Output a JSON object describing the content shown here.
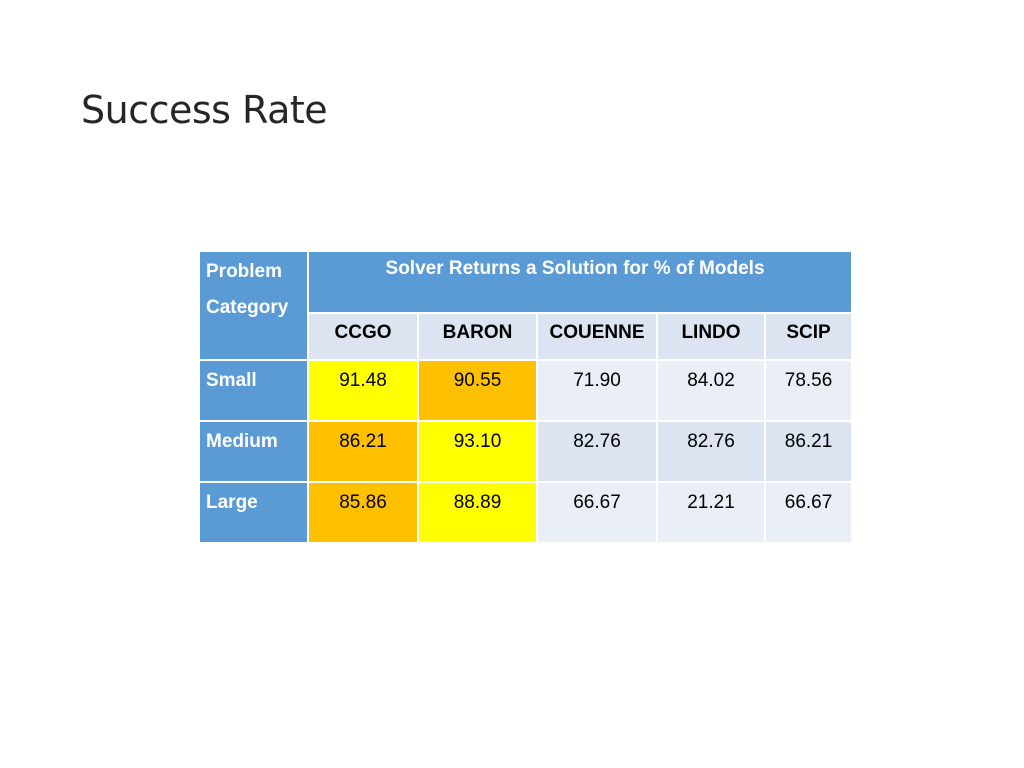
{
  "slide": {
    "title": "Success Rate"
  },
  "table": {
    "category_header_line1": "Problem",
    "category_header_line2": "Category",
    "span_header": "Solver Returns a Solution for % of Models",
    "solvers": [
      "CCGO",
      "BARON",
      "COUENNE",
      "LINDO",
      "SCIP"
    ],
    "rows": [
      {
        "category": "Small",
        "values": [
          "91.48",
          "90.55",
          "71.90",
          "84.02",
          "78.56"
        ],
        "highlights": [
          "yellow",
          "gold",
          "",
          "",
          ""
        ]
      },
      {
        "category": "Medium",
        "values": [
          "86.21",
          "93.10",
          "82.76",
          "82.76",
          "86.21"
        ],
        "highlights": [
          "gold",
          "yellow",
          "",
          "",
          ""
        ]
      },
      {
        "category": "Large",
        "values": [
          "85.86",
          "88.89",
          "66.67",
          "21.21",
          "66.67"
        ],
        "highlights": [
          "gold",
          "yellow",
          "",
          "",
          ""
        ]
      }
    ],
    "colors": {
      "header_blue": "#5b9bd5",
      "cell_light": "#dbe4f0",
      "cell_lighter": "#eaeff7",
      "highlight_gold": "#ffc000",
      "highlight_yellow": "#ffff00"
    }
  }
}
